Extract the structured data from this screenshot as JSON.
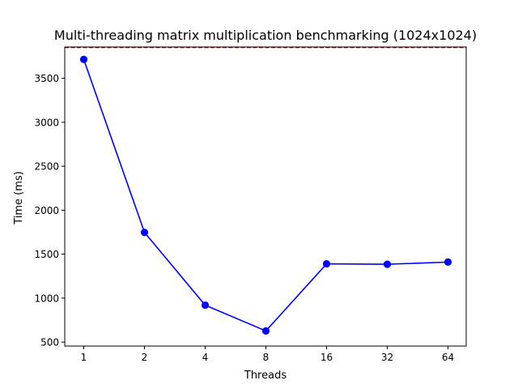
{
  "chart_data": {
    "type": "line",
    "title": "Multi-threading matrix multiplication benchmarking (1024x1024)",
    "xlabel": "Threads",
    "ylabel": "Time (ms)",
    "categories": [
      "1",
      "2",
      "4",
      "8",
      "16",
      "32",
      "64"
    ],
    "series": [
      {
        "values": [
          3715,
          1748,
          920,
          627,
          1390,
          1385,
          1410
        ],
        "color": "#0000ff",
        "marker": "circle"
      }
    ],
    "reference_line": {
      "y": 3850,
      "color": "#8b0000",
      "style": "dashed"
    },
    "ylim": [
      455,
      3856
    ],
    "yticks": [
      500,
      1000,
      1500,
      2000,
      2500,
      3000,
      3500
    ],
    "grid": false,
    "legend": false
  }
}
